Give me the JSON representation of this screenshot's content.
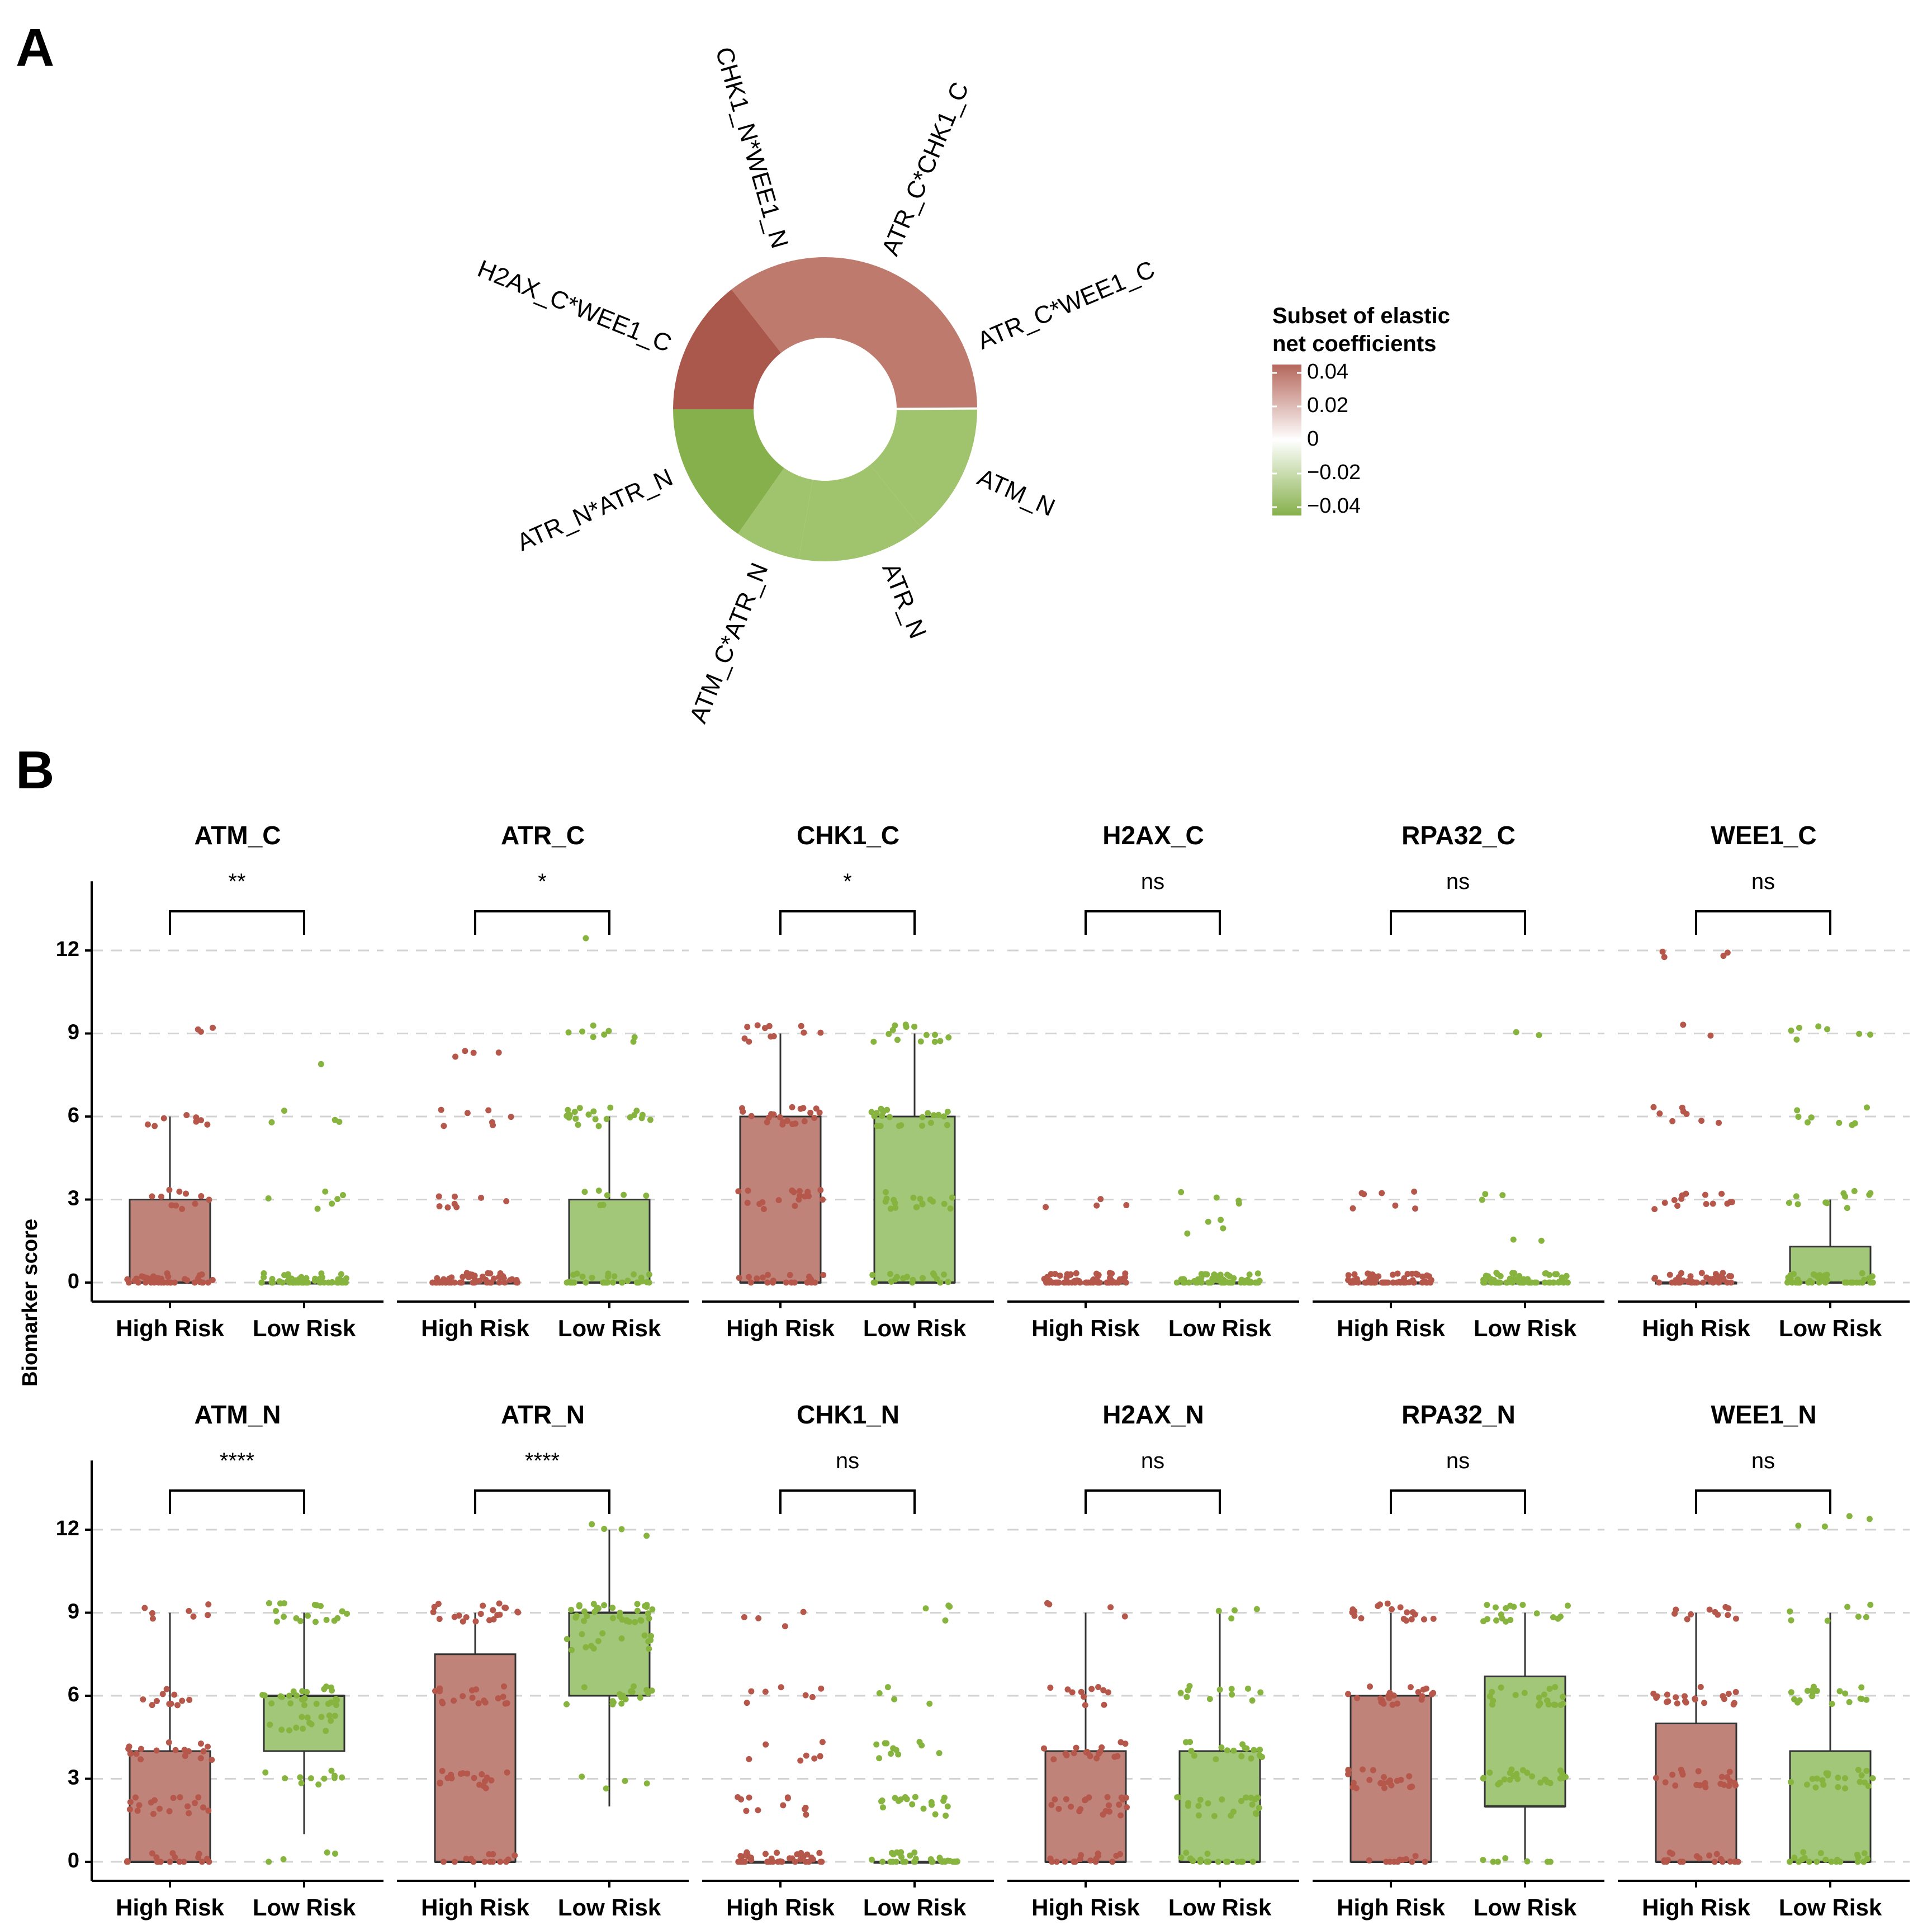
{
  "panel_labels": [
    "A",
    "B"
  ],
  "chart_data": [
    {
      "type": "pie",
      "subtype": "donut",
      "title": "",
      "legend": {
        "title_line1": "Subset of elastic",
        "title_line2": "net coefficients",
        "ticks": [
          "0.04",
          "0.02",
          "0",
          "−0.02",
          "−0.04"
        ],
        "tick_values": [
          0.04,
          0.02,
          0,
          -0.02,
          -0.04
        ],
        "range": [
          -0.045,
          0.045
        ],
        "colors": {
          "positive": "#B5675B",
          "zero": "#FFFFFF",
          "negative": "#86B04B"
        },
        "placement": "right"
      },
      "segments": [
        {
          "label": "ATR_C*CHK1_C",
          "value": 0.028,
          "start_deg": 0,
          "end_deg": 89.4,
          "color": "#BE7A6D"
        },
        {
          "label": "ATR_C*WEE1_C",
          "value": 0.0005,
          "start_deg": 89.4,
          "end_deg": 90.0,
          "color": "#E9D3CE"
        },
        {
          "label": "ATM_N",
          "value": -0.024,
          "start_deg": 90.0,
          "end_deg": 141.0,
          "color": "#A0C36D"
        },
        {
          "label": "ATR_N",
          "value": -0.024,
          "start_deg": 141.0,
          "end_deg": 190.0,
          "color": "#A0C36D"
        },
        {
          "label": "ATM_C*ATR_N",
          "value": -0.024,
          "start_deg": 190.0,
          "end_deg": 215.0,
          "color": "#A0C36D"
        },
        {
          "label": "ATR_N*ATR_N",
          "value": -0.04,
          "start_deg": 215.0,
          "end_deg": 270.0,
          "color": "#86B04B"
        },
        {
          "label": "H2AX_C*WEE1_C",
          "value": 0.038,
          "start_deg": 270.0,
          "end_deg": 322.0,
          "color": "#AA584B"
        },
        {
          "label": "CHK1_N*WEE1_N",
          "value": 0.028,
          "start_deg": 322.0,
          "end_deg": 360.0,
          "color": "#BE7A6D"
        }
      ],
      "segment_labels": [
        {
          "text": "CHK1_N*WEE1_N",
          "angle_deg": 344
        },
        {
          "text": "ATR_C*CHK1_C",
          "angle_deg": 23
        },
        {
          "text": "ATR_C*WEE1_C",
          "angle_deg": 67
        },
        {
          "text": "ATM_N",
          "angle_deg": 114
        },
        {
          "text": "ATR_N",
          "angle_deg": 158
        },
        {
          "text": "ATM_C*ATR_N",
          "angle_deg": 202
        },
        {
          "text": "ATR_N*ATR_N",
          "angle_deg": 246
        },
        {
          "text": "H2AX_C*WEE1_C",
          "angle_deg": 292
        }
      ]
    },
    {
      "type": "box",
      "description": "Box plots with jittered points, faceted by biomarker",
      "ylabel": "Biomarker score",
      "yticks": [
        0,
        3,
        6,
        9,
        12
      ],
      "ylim": [
        -0.7,
        14.5
      ],
      "categories": [
        "High Risk",
        "Low Risk"
      ],
      "colors": {
        "High Risk": "#C0837A",
        "Low Risk": "#A3C779",
        "High Risk point": "#B5574A",
        "Low Risk point": "#86B43F"
      },
      "grid": "horizontal dashed",
      "facets": [
        {
          "title": "ATM_C",
          "row": 0,
          "col": 0,
          "sig": "**",
          "boxes": [
            {
              "q1": 0,
              "median": 0,
              "q3": 3,
              "whisker_low": 0,
              "whisker_high": 6
            },
            {
              "q1": 0,
              "median": 0,
              "q3": 0,
              "whisker_low": 0,
              "whisker_high": 0
            }
          ],
          "points": [
            {
              "n": 14,
              "levels": [
                [
                  0,
                  0.55
                ],
                [
                  3,
                  0.15
                ],
                [
                  6,
                  0.12
                ],
                [
                  9,
                  0.04
                ]
              ]
            },
            {
              "n": 12,
              "levels": [
                [
                  0,
                  0.8
                ],
                [
                  3,
                  0.08
                ],
                [
                  6,
                  0.06
                ],
                [
                  7.7,
                  0.02
                ]
              ]
            }
          ]
        },
        {
          "title": "ATR_C",
          "row": 0,
          "col": 1,
          "sig": "*",
          "boxes": [
            {
              "q1": 0,
              "median": 0,
              "q3": 0,
              "whisker_low": 0,
              "whisker_high": 0
            },
            {
              "q1": 0,
              "median": 0,
              "q3": 3,
              "whisker_low": 0,
              "whisker_high": 6
            }
          ],
          "points": [
            {
              "n": 12,
              "levels": [
                [
                  0,
                  0.7
                ],
                [
                  3,
                  0.12
                ],
                [
                  6,
                  0.1
                ],
                [
                  8.5,
                  0.06
                ]
              ]
            },
            {
              "n": 14,
              "levels": [
                [
                  0,
                  0.45
                ],
                [
                  3,
                  0.1
                ],
                [
                  6,
                  0.3
                ],
                [
                  9,
                  0.12
                ],
                [
                  12.2,
                  0.02
                ]
              ]
            }
          ]
        },
        {
          "title": "CHK1_C",
          "row": 0,
          "col": 2,
          "sig": "*",
          "boxes": [
            {
              "q1": 0,
              "median": 0,
              "q3": 6,
              "whisker_low": 0,
              "whisker_high": 9
            },
            {
              "q1": 0,
              "median": 0,
              "q3": 6,
              "whisker_low": 0,
              "whisker_high": 9
            }
          ],
          "points": [
            {
              "n": 16,
              "levels": [
                [
                  0,
                  0.3
                ],
                [
                  3,
                  0.25
                ],
                [
                  6,
                  0.3
                ],
                [
                  9,
                  0.15
                ]
              ]
            },
            {
              "n": 18,
              "levels": [
                [
                  0,
                  0.25
                ],
                [
                  3,
                  0.25
                ],
                [
                  6,
                  0.3
                ],
                [
                  9,
                  0.2
                ]
              ]
            }
          ]
        },
        {
          "title": "H2AX_C",
          "row": 0,
          "col": 3,
          "sig": "ns",
          "boxes": [
            {
              "q1": 0,
              "median": 0,
              "q3": 0,
              "whisker_low": 0,
              "whisker_high": 0
            },
            {
              "q1": 0,
              "median": 0,
              "q3": 0,
              "whisker_low": 0,
              "whisker_high": 0
            }
          ],
          "points": [
            {
              "n": 10,
              "levels": [
                [
                  0,
                  0.95
                ],
                [
                  3,
                  0.05
                ]
              ]
            },
            {
              "n": 10,
              "levels": [
                [
                  0,
                  0.9
                ],
                [
                  2,
                  0.05
                ],
                [
                  3,
                  0.05
                ]
              ]
            }
          ]
        },
        {
          "title": "RPA32_C",
          "row": 0,
          "col": 4,
          "sig": "ns",
          "boxes": [
            {
              "q1": 0,
              "median": 0,
              "q3": 0,
              "whisker_low": 0,
              "whisker_high": 0
            },
            {
              "q1": 0,
              "median": 0,
              "q3": 0,
              "whisker_low": 0,
              "whisker_high": 0
            }
          ],
          "points": [
            {
              "n": 10,
              "levels": [
                [
                  0,
                  0.9
                ],
                [
                  3,
                  0.1
                ]
              ]
            },
            {
              "n": 10,
              "levels": [
                [
                  0,
                  0.9
                ],
                [
                  1.3,
                  0.03
                ],
                [
                  3,
                  0.04
                ],
                [
                  8.8,
                  0.03
                ]
              ]
            }
          ]
        },
        {
          "title": "WEE1_C",
          "row": 0,
          "col": 5,
          "sig": "ns",
          "boxes": [
            {
              "q1": 0,
              "median": 0,
              "q3": 0,
              "whisker_low": 0,
              "whisker_high": 0
            },
            {
              "q1": 0,
              "median": 0,
              "q3": 1.3,
              "whisker_low": 0,
              "whisker_high": 3
            }
          ],
          "points": [
            {
              "n": 12,
              "levels": [
                [
                  0,
                  0.6
                ],
                [
                  3,
                  0.2
                ],
                [
                  6,
                  0.12
                ],
                [
                  9,
                  0.03
                ],
                [
                  12,
                  0.05
                ]
              ]
            },
            {
              "n": 12,
              "levels": [
                [
                  0,
                  0.6
                ],
                [
                  3,
                  0.15
                ],
                [
                  6,
                  0.12
                ],
                [
                  9,
                  0.1
                ]
              ]
            }
          ]
        },
        {
          "title": "ATM_N",
          "row": 1,
          "col": 0,
          "sig": "****",
          "boxes": [
            {
              "q1": 0,
              "median": 0,
              "q3": 4,
              "whisker_low": 0,
              "whisker_high": 9
            },
            {
              "q1": 4,
              "median": 6,
              "q3": 6,
              "whisker_low": 1,
              "whisker_high": 9
            }
          ],
          "points": [
            {
              "n": 16,
              "levels": [
                [
                  0,
                  0.25
                ],
                [
                  2,
                  0.25
                ],
                [
                  4,
                  0.25
                ],
                [
                  6,
                  0.15
                ],
                [
                  9,
                  0.1
                ]
              ]
            },
            {
              "n": 18,
              "levels": [
                [
                  0,
                  0.05
                ],
                [
                  3,
                  0.15
                ],
                [
                  5,
                  0.2
                ],
                [
                  6,
                  0.35
                ],
                [
                  9,
                  0.25
                ]
              ]
            }
          ]
        },
        {
          "title": "ATR_N",
          "row": 1,
          "col": 1,
          "sig": "****",
          "boxes": [
            {
              "q1": 0,
              "median": 0,
              "q3": 7.5,
              "whisker_low": 0,
              "whisker_high": 9
            },
            {
              "q1": 6,
              "median": 9,
              "q3": 9,
              "whisker_low": 2,
              "whisker_high": 12
            }
          ],
          "points": [
            {
              "n": 16,
              "levels": [
                [
                  0,
                  0.2
                ],
                [
                  3,
                  0.25
                ],
                [
                  6,
                  0.25
                ],
                [
                  9,
                  0.3
                ]
              ]
            },
            {
              "n": 18,
              "levels": [
                [
                  3,
                  0.05
                ],
                [
                  6,
                  0.25
                ],
                [
                  8,
                  0.2
                ],
                [
                  9,
                  0.45
                ],
                [
                  12,
                  0.05
                ]
              ]
            }
          ]
        },
        {
          "title": "CHK1_N",
          "row": 1,
          "col": 2,
          "sig": "ns",
          "boxes": [
            {
              "q1": 0,
              "median": 0,
              "q3": 0,
              "whisker_low": 0,
              "whisker_high": 0
            },
            {
              "q1": 0,
              "median": 0,
              "q3": 0,
              "whisker_low": 0,
              "whisker_high": 0
            }
          ],
          "points": [
            {
              "n": 10,
              "levels": [
                [
                  0,
                  0.6
                ],
                [
                  2,
                  0.15
                ],
                [
                  4,
                  0.1
                ],
                [
                  6,
                  0.1
                ],
                [
                  8.8,
                  0.05
                ]
              ]
            },
            {
              "n": 10,
              "levels": [
                [
                  0,
                  0.5
                ],
                [
                  2,
                  0.25
                ],
                [
                  4,
                  0.15
                ],
                [
                  6,
                  0.05
                ],
                [
                  9,
                  0.05
                ]
              ]
            }
          ]
        },
        {
          "title": "H2AX_N",
          "row": 1,
          "col": 3,
          "sig": "ns",
          "boxes": [
            {
              "q1": 0,
              "median": 0,
              "q3": 4,
              "whisker_low": 0,
              "whisker_high": 9
            },
            {
              "q1": 0,
              "median": 0,
              "q3": 4,
              "whisker_low": 0,
              "whisker_high": 9
            }
          ],
          "points": [
            {
              "n": 14,
              "levels": [
                [
                  0,
                  0.25
                ],
                [
                  2,
                  0.3
                ],
                [
                  4,
                  0.25
                ],
                [
                  6,
                  0.15
                ],
                [
                  9,
                  0.05
                ]
              ]
            },
            {
              "n": 14,
              "levels": [
                [
                  0,
                  0.25
                ],
                [
                  2,
                  0.3
                ],
                [
                  4,
                  0.25
                ],
                [
                  6,
                  0.15
                ],
                [
                  9,
                  0.05
                ]
              ]
            }
          ]
        },
        {
          "title": "RPA32_N",
          "row": 1,
          "col": 4,
          "sig": "ns",
          "boxes": [
            {
              "q1": 0,
              "median": 0,
              "q3": 6,
              "whisker_low": 0,
              "whisker_high": 9
            },
            {
              "q1": 2,
              "median": 2,
              "q3": 6.7,
              "whisker_low": 0,
              "whisker_high": 9
            }
          ],
          "points": [
            {
              "n": 16,
              "levels": [
                [
                  0,
                  0.15
                ],
                [
                  3,
                  0.3
                ],
                [
                  6,
                  0.3
                ],
                [
                  9,
                  0.25
                ]
              ]
            },
            {
              "n": 16,
              "levels": [
                [
                  0,
                  0.1
                ],
                [
                  3,
                  0.35
                ],
                [
                  6,
                  0.3
                ],
                [
                  9,
                  0.25
                ]
              ]
            }
          ]
        },
        {
          "title": "WEE1_N",
          "row": 1,
          "col": 5,
          "sig": "ns",
          "boxes": [
            {
              "q1": 0,
              "median": 0,
              "q3": 5,
              "whisker_low": 0,
              "whisker_high": 9
            },
            {
              "q1": 0,
              "median": 0,
              "q3": 4,
              "whisker_low": 0,
              "whisker_high": 9
            }
          ],
          "points": [
            {
              "n": 14,
              "levels": [
                [
                  0,
                  0.25
                ],
                [
                  3,
                  0.3
                ],
                [
                  6,
                  0.3
                ],
                [
                  9,
                  0.15
                ]
              ]
            },
            {
              "n": 14,
              "levels": [
                [
                  0,
                  0.3
                ],
                [
                  3,
                  0.3
                ],
                [
                  6,
                  0.25
                ],
                [
                  9,
                  0.1
                ],
                [
                  12.4,
                  0.05
                ]
              ]
            }
          ]
        }
      ]
    }
  ]
}
